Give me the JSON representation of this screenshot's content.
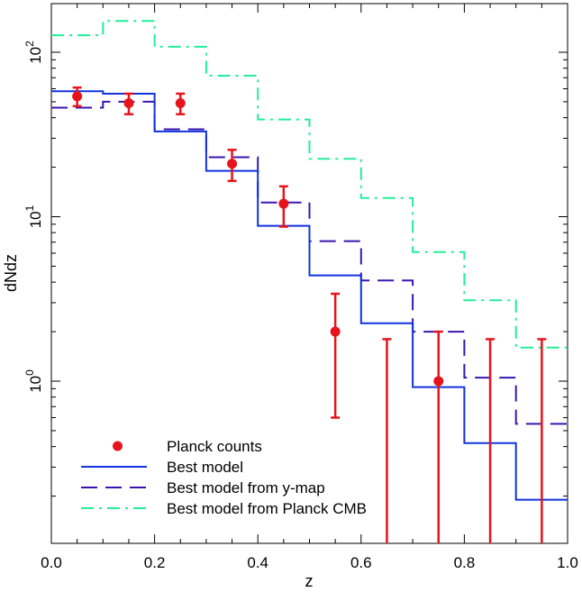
{
  "chart_data": {
    "type": "line",
    "xlabel": "z",
    "ylabel": "dNdz",
    "xlim": [
      0.0,
      1.0
    ],
    "ylim": [
      0.1,
      200
    ],
    "yscale": "log",
    "x_ticks": [
      "0.0",
      "0.2",
      "0.4",
      "0.6",
      "0.8",
      "1.0"
    ],
    "y_ticks": [
      {
        "base": "10",
        "exp": "0",
        "value": 1
      },
      {
        "base": "10",
        "exp": "1",
        "value": 10
      },
      {
        "base": "10",
        "exp": "2",
        "value": 100
      }
    ],
    "legend_position": "bottom-left",
    "bin_edges": [
      0.0,
      0.1,
      0.2,
      0.3,
      0.4,
      0.5,
      0.6,
      0.7,
      0.8,
      0.9,
      1.0
    ],
    "series": [
      {
        "name": "Planck counts",
        "kind": "points",
        "color": "#e8141c",
        "x": [
          0.05,
          0.15,
          0.25,
          0.35,
          0.45,
          0.55,
          0.75
        ],
        "y": [
          54,
          49,
          49,
          21,
          12,
          2.0,
          1.0
        ],
        "yerr_low": [
          47,
          42,
          42,
          16.5,
          8.7,
          0.6,
          0.1
        ],
        "yerr_high": [
          61,
          56,
          56,
          25.5,
          15.3,
          3.4,
          2.0
        ],
        "upper_limits": [
          {
            "x": 0.65,
            "top": 1.8
          },
          {
            "x": 0.85,
            "top": 1.8
          },
          {
            "x": 0.95,
            "top": 1.8
          }
        ]
      },
      {
        "name": "Best model",
        "kind": "step",
        "color": "#1133dd",
        "dash": "solid",
        "values": [
          58,
          56,
          33,
          19,
          8.8,
          4.4,
          2.25,
          0.92,
          0.42,
          0.19
        ]
      },
      {
        "name": "Best model from y-map",
        "kind": "step",
        "color": "#3a16b0",
        "dash": "long-dash",
        "values": [
          46,
          50,
          34,
          23,
          12.2,
          7.1,
          4.1,
          2.0,
          1.05,
          0.55
        ]
      },
      {
        "name": "Best model from Planck CMB",
        "kind": "step",
        "color": "#22ee99",
        "dash": "dash-dot",
        "values": [
          127,
          155,
          108,
          72,
          39,
          22.5,
          13,
          6.1,
          3.1,
          1.6
        ]
      }
    ]
  }
}
